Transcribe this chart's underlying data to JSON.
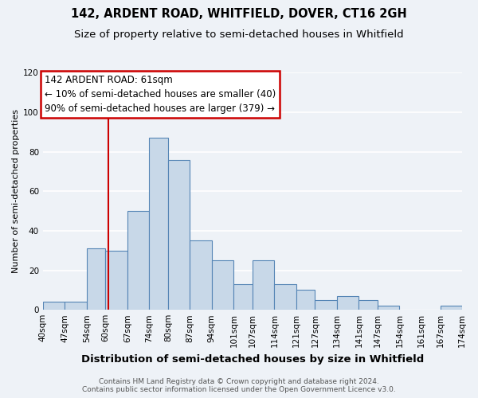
{
  "title": "142, ARDENT ROAD, WHITFIELD, DOVER, CT16 2GH",
  "subtitle": "Size of property relative to semi-detached houses in Whitfield",
  "xlabel": "Distribution of semi-detached houses by size in Whitfield",
  "ylabel": "Number of semi-detached properties",
  "bin_labels": [
    "40sqm",
    "47sqm",
    "54sqm",
    "60sqm",
    "67sqm",
    "74sqm",
    "80sqm",
    "87sqm",
    "94sqm",
    "101sqm",
    "107sqm",
    "114sqm",
    "121sqm",
    "127sqm",
    "134sqm",
    "141sqm",
    "147sqm",
    "154sqm",
    "161sqm",
    "167sqm",
    "174sqm"
  ],
  "bin_edges": [
    40,
    47,
    54,
    60,
    67,
    74,
    80,
    87,
    94,
    101,
    107,
    114,
    121,
    127,
    134,
    141,
    147,
    154,
    161,
    167,
    174
  ],
  "bar_heights": [
    4,
    4,
    31,
    30,
    50,
    87,
    76,
    35,
    25,
    13,
    25,
    13,
    10,
    5,
    7,
    5,
    2,
    0,
    0,
    2
  ],
  "bar_color": "#c8d8e8",
  "bar_edge_color": "#5585b5",
  "property_line_x": 61,
  "annotation_title": "142 ARDENT ROAD: 61sqm",
  "annotation_line1": "← 10% of semi-detached houses are smaller (40)",
  "annotation_line2": "90% of semi-detached houses are larger (379) →",
  "annotation_box_color": "#ffffff",
  "annotation_box_edge_color": "#cc0000",
  "vline_color": "#cc0000",
  "ylim": [
    0,
    120
  ],
  "yticks": [
    0,
    20,
    40,
    60,
    80,
    100,
    120
  ],
  "footnote1": "Contains HM Land Registry data © Crown copyright and database right 2024.",
  "footnote2": "Contains public sector information licensed under the Open Government Licence v3.0.",
  "background_color": "#eef2f7",
  "grid_color": "#ffffff",
  "title_fontsize": 10.5,
  "subtitle_fontsize": 9.5,
  "xlabel_fontsize": 9.5,
  "ylabel_fontsize": 8,
  "tick_fontsize": 7.5,
  "annotation_fontsize": 8.5,
  "footnote_fontsize": 6.5
}
